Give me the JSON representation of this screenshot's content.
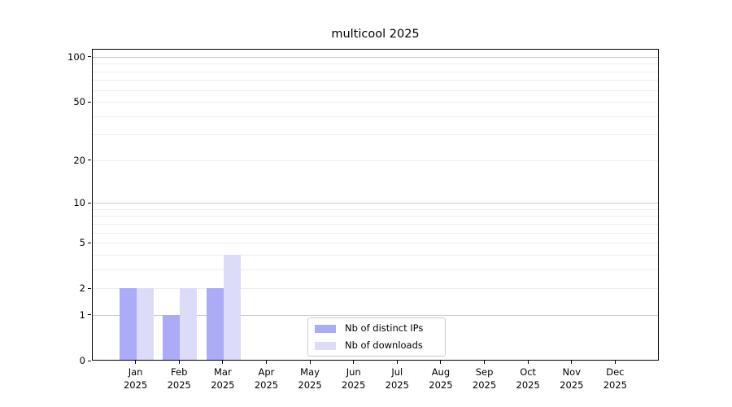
{
  "chart_data": {
    "type": "bar",
    "title": "multicool 2025",
    "x": {
      "months": [
        "Jan",
        "Feb",
        "Mar",
        "Apr",
        "May",
        "Jun",
        "Jul",
        "Aug",
        "Sep",
        "Oct",
        "Nov",
        "Dec"
      ],
      "year": "2025"
    },
    "series": [
      {
        "name": "Nb of distinct IPs",
        "color": "#ababf8",
        "values": [
          2,
          1,
          2,
          0,
          0,
          0,
          0,
          0,
          0,
          0,
          0,
          0
        ]
      },
      {
        "name": "Nb of downloads",
        "color": "#dcdcf9",
        "values": [
          2,
          2,
          4,
          0,
          0,
          0,
          0,
          0,
          0,
          0,
          0,
          0
        ]
      }
    ],
    "yscale": "log1p",
    "ylim": [
      0,
      113
    ],
    "yticks": [
      0,
      1,
      2,
      5,
      10,
      20,
      50,
      100
    ],
    "grid": {
      "major_values": [
        1,
        10,
        100
      ],
      "minor_values": [
        2,
        3,
        4,
        5,
        6,
        7,
        8,
        9,
        20,
        30,
        40,
        50,
        60,
        70,
        80,
        90
      ],
      "major_color": "#c9c9c9",
      "minor_color": "#ededed"
    },
    "legend": {
      "position": "lower center"
    }
  }
}
